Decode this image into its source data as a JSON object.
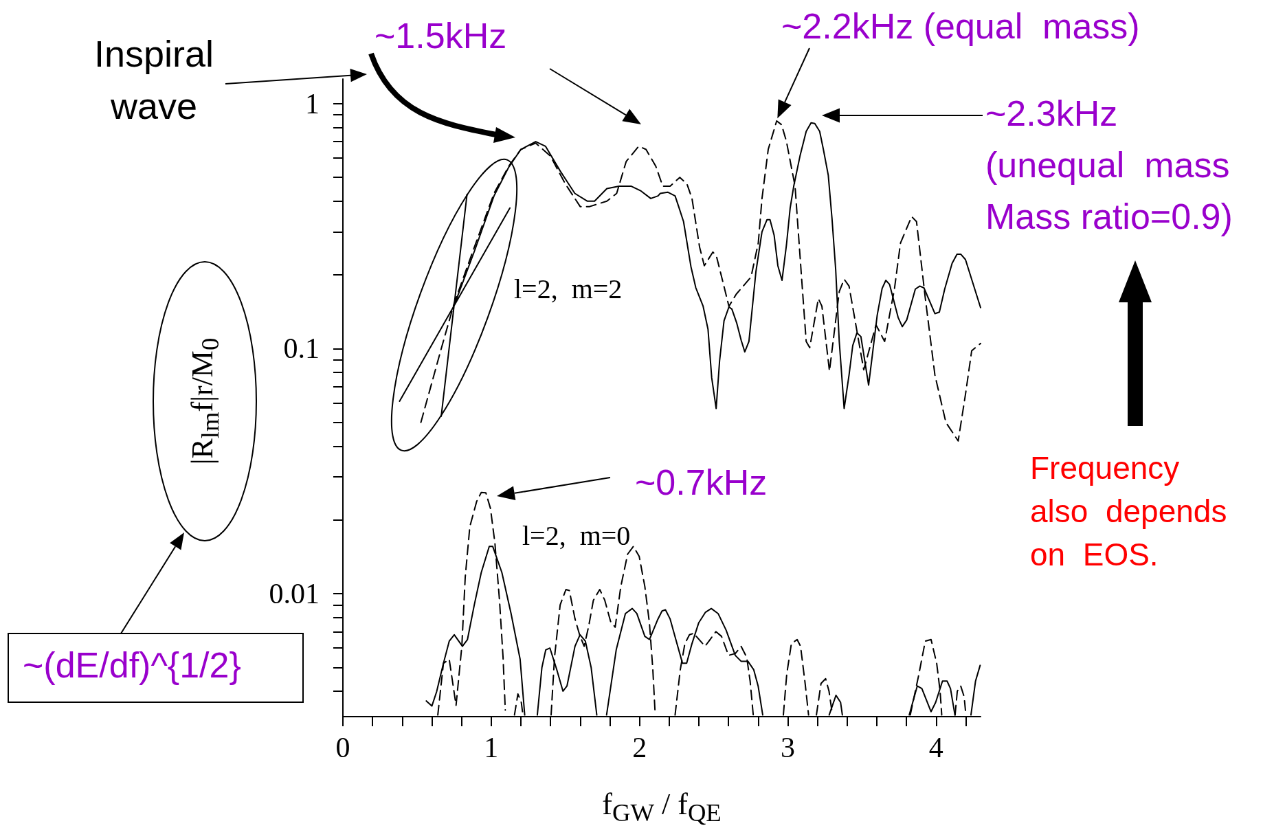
{
  "chart_data": {
    "type": "line",
    "xlabel": "f$_{GW}$ / f$_{QE}$",
    "ylabel": "|R$_{lm}$f|r/M$_{0}$",
    "xlim": [
      0,
      4.3
    ],
    "ylim": [
      0.00315,
      1.26
    ],
    "log": "y",
    "grid": false,
    "marker": "none",
    "xticks": [
      0,
      {
        "value": 0.2,
        "label": null
      },
      {
        "value": 0.4,
        "label": null
      },
      {
        "value": 0.6,
        "label": null
      },
      {
        "value": 0.8,
        "label": null
      },
      1,
      {
        "value": 1.2,
        "label": null
      },
      {
        "value": 1.4,
        "label": null
      },
      {
        "value": 1.6,
        "label": null
      },
      {
        "value": 1.8,
        "label": null
      },
      2,
      {
        "value": 2.2,
        "label": null
      },
      {
        "value": 2.4,
        "label": null
      },
      {
        "value": 2.6,
        "label": null
      },
      {
        "value": 2.8,
        "label": null
      },
      3,
      {
        "value": 3.2,
        "label": null
      },
      {
        "value": 3.4,
        "label": null
      },
      {
        "value": 3.6,
        "label": null
      },
      {
        "value": 3.8,
        "label": null
      },
      4,
      {
        "value": 4.2,
        "label": null
      }
    ],
    "yticks": [
      {
        "value": 0.004,
        "label": null
      },
      {
        "value": 0.005,
        "label": null
      },
      {
        "value": 0.006,
        "label": null
      },
      {
        "value": 0.007,
        "label": null
      },
      {
        "value": 0.008,
        "label": null
      },
      {
        "value": 0.009,
        "label": null
      },
      0.01,
      {
        "value": 0.02,
        "label": null
      },
      {
        "value": 0.03,
        "label": null
      },
      {
        "value": 0.04,
        "label": null
      },
      {
        "value": 0.05,
        "label": null
      },
      {
        "value": 0.06,
        "label": null
      },
      {
        "value": 0.07,
        "label": null
      },
      {
        "value": 0.08,
        "label": null
      },
      {
        "value": 0.09,
        "label": null
      },
      0.1,
      {
        "value": 0.2,
        "label": null
      },
      {
        "value": 0.3,
        "label": null
      },
      {
        "value": 0.4,
        "label": null
      },
      {
        "value": 0.5,
        "label": null
      },
      {
        "value": 0.6,
        "label": null
      },
      {
        "value": 0.7,
        "label": null
      },
      {
        "value": 0.8,
        "label": null
      },
      {
        "value": 0.9,
        "label": null
      },
      1
    ],
    "series": [
      {
        "color": "#000000",
        "line_style": "solid",
        "x": [
          0.382,
          1.126,
          1.0,
          0.837,
          0.663,
          0.7,
          0.75,
          0.887,
          1.019,
          1.118,
          1.2,
          1.3,
          1.366,
          1.466,
          1.564,
          1.647,
          1.697,
          1.78,
          1.862,
          1.945,
          2.01,
          2.076,
          2.125,
          2.14,
          2.19,
          2.24,
          2.264,
          2.297,
          2.347,
          2.38,
          2.429,
          2.462,
          2.487,
          2.517,
          2.54,
          2.57,
          2.603,
          2.623,
          2.656,
          2.686,
          2.71,
          2.738,
          2.785,
          2.826,
          2.86,
          2.88,
          2.908,
          2.933,
          2.961,
          2.991,
          3.016,
          3.04,
          3.082,
          3.124,
          3.157,
          3.182,
          3.215,
          3.24,
          3.273,
          3.298,
          3.323,
          3.347,
          3.38,
          3.413,
          3.438,
          3.466,
          3.493,
          3.545,
          3.57,
          3.603,
          3.636,
          3.661,
          3.686,
          3.744,
          3.772,
          3.802,
          3.86,
          3.89,
          3.918,
          3.992,
          4.022,
          4.058,
          4.108,
          4.141,
          4.166,
          4.198,
          4.3
        ],
        "values": [
          0.061,
          0.375,
          null,
          0.426,
          0.053,
          null,
          0.15,
          0.25,
          0.42,
          0.55,
          0.65,
          0.7,
          0.67,
          0.53,
          0.43,
          0.4,
          0.4,
          0.45,
          0.46,
          0.46,
          0.44,
          0.41,
          0.42,
          0.43,
          0.435,
          0.42,
          0.38,
          0.33,
          0.216,
          0.177,
          0.149,
          0.12,
          0.076,
          0.057,
          0.089,
          0.13,
          0.148,
          0.145,
          0.127,
          0.108,
          0.097,
          0.107,
          0.206,
          0.3,
          0.336,
          0.336,
          0.29,
          0.218,
          0.19,
          0.265,
          0.375,
          0.46,
          0.61,
          0.77,
          0.835,
          0.83,
          0.77,
          0.65,
          0.51,
          0.34,
          0.21,
          0.107,
          0.057,
          0.078,
          0.103,
          0.116,
          0.112,
          0.071,
          0.094,
          0.137,
          0.176,
          0.19,
          0.183,
          0.134,
          0.123,
          0.131,
          0.175,
          0.18,
          0.177,
          0.139,
          0.141,
          0.175,
          0.223,
          0.243,
          0.243,
          0.231,
          0.147
        ]
      },
      {
        "color": "#000000",
        "line_style": "dashed",
        "x": [
          0.526,
          0.655,
          0.75,
          0.887,
          1.019,
          1.118,
          1.2,
          1.3,
          1.4,
          1.5,
          1.6,
          1.664,
          1.78,
          1.846,
          1.91,
          1.995,
          2.044,
          2.11,
          2.157,
          2.206,
          2.272,
          2.32,
          2.354,
          2.405,
          2.437,
          2.495,
          2.52,
          2.603,
          2.653,
          2.752,
          2.801,
          2.826,
          2.868,
          2.925,
          2.958,
          2.991,
          3.049,
          3.09,
          3.124,
          3.148,
          3.206,
          3.23,
          3.281,
          3.347,
          3.38,
          3.413,
          3.512,
          3.595,
          3.653,
          3.719,
          3.76,
          3.835,
          3.868,
          3.926,
          3.992,
          4.066,
          4.149,
          4.198,
          4.24,
          4.3
        ],
        "values": [
          0.05,
          0.096,
          0.153,
          0.26,
          0.43,
          0.555,
          0.65,
          0.69,
          0.61,
          0.47,
          0.38,
          0.38,
          0.4,
          0.43,
          0.58,
          0.67,
          0.65,
          0.555,
          0.46,
          0.46,
          0.5,
          0.47,
          0.41,
          0.26,
          0.218,
          0.248,
          0.237,
          0.149,
          0.167,
          0.196,
          0.27,
          0.41,
          0.65,
          0.85,
          0.82,
          0.7,
          0.46,
          0.206,
          0.107,
          0.101,
          0.16,
          0.149,
          0.081,
          0.171,
          0.192,
          0.18,
          0.082,
          0.125,
          0.107,
          0.175,
          0.27,
          0.346,
          0.33,
          0.163,
          0.078,
          0.05,
          0.042,
          0.065,
          0.098,
          0.105
        ]
      },
      {
        "color": "#000000",
        "line_style": "solid",
        "x": [
          0.5625,
          0.6,
          0.632,
          0.678,
          0.717,
          0.751,
          0.806,
          0.84,
          0.886,
          0.933,
          0.987,
          1.01,
          1.072,
          1.134,
          1.195,
          1.226,
          1.27,
          1.311,
          1.342,
          1.368,
          1.396,
          1.442,
          1.484,
          1.511,
          1.565,
          1.599,
          1.635,
          1.674,
          1.712,
          1.745,
          1.778,
          1.843,
          1.905,
          1.951,
          1.982,
          2.036,
          2.067,
          2.121,
          2.152,
          2.175,
          2.206,
          2.245,
          2.29,
          2.318,
          2.352,
          2.399,
          2.445,
          2.484,
          2.53,
          2.584,
          2.646,
          2.685,
          2.731,
          2.77,
          2.8,
          2.831,
          3.05,
          3.279,
          3.325,
          3.356,
          3.368,
          3.6,
          3.819,
          3.873,
          3.904,
          3.966,
          3.997,
          4.043,
          4.074,
          4.097,
          4.127,
          4.18,
          4.235,
          4.266,
          4.297
        ],
        "values": [
          0.00365,
          0.00348,
          0.00398,
          0.0052,
          0.0064,
          0.0068,
          0.0061,
          0.0065,
          0.009,
          0.0122,
          0.0156,
          0.0156,
          0.0122,
          0.0083,
          0.0054,
          0.0032,
          null,
          0.0032,
          0.005,
          0.0059,
          0.006,
          0.0049,
          0.004,
          0.0042,
          0.0061,
          0.0068,
          0.0064,
          0.005,
          0.0032,
          null,
          0.0032,
          0.0059,
          0.0083,
          0.0087,
          0.0083,
          0.0067,
          0.0065,
          0.0078,
          0.0085,
          0.0086,
          0.0079,
          0.0065,
          0.0052,
          0.0052,
          0.0062,
          0.0076,
          0.0084,
          0.0087,
          0.0083,
          0.0071,
          0.0056,
          0.0053,
          0.0053,
          0.0049,
          0.0042,
          0.0032,
          null,
          0.0032,
          0.00385,
          0.0036,
          0.0032,
          null,
          0.0032,
          0.0042,
          0.0041,
          0.0033,
          0.0036,
          0.0044,
          0.0044,
          0.0041,
          0.0032,
          null,
          0.0032,
          0.0044,
          0.0051
        ]
      },
      {
        "color": "#000000",
        "line_style": "dashed",
        "x": [
          0.64,
          0.678,
          0.717,
          0.763,
          0.802,
          0.825,
          0.856,
          0.902,
          0.933,
          0.964,
          0.995,
          1.025,
          1.056,
          1.08,
          1.095,
          1.13,
          1.157,
          1.18,
          1.203,
          1.214,
          1.3,
          1.404,
          1.427,
          1.465,
          1.504,
          1.527,
          1.565,
          1.596,
          1.627,
          1.658,
          1.689,
          1.732,
          1.766,
          1.805,
          1.836,
          1.874,
          1.92,
          1.959,
          1.998,
          2.036,
          2.067,
          2.09,
          2.106,
          2.17,
          2.24,
          2.275,
          2.306,
          2.337,
          2.368,
          2.383,
          2.442,
          2.476,
          2.515,
          2.553,
          2.6,
          2.646,
          2.685,
          2.723,
          2.746,
          2.767,
          2.87,
          2.97,
          2.993,
          3.024,
          3.063,
          3.086,
          3.117,
          3.14,
          3.17,
          3.193,
          3.224,
          3.255,
          3.278,
          3.301,
          3.6,
          3.826,
          3.881,
          3.927,
          3.966,
          4.004,
          4.027,
          4.038,
          4.09,
          4.128,
          4.143,
          4.166,
          4.189,
          4.201
        ],
        "values": [
          0.0032,
          0.0052,
          0.0054,
          0.0035,
          0.0061,
          0.0117,
          0.0188,
          0.0238,
          0.0259,
          0.0258,
          0.0223,
          0.0161,
          0.0094,
          0.0055,
          0.00335,
          null,
          0.0032,
          0.0039,
          0.0036,
          0.0032,
          null,
          0.0032,
          0.0055,
          0.009,
          0.0104,
          0.0103,
          0.0079,
          0.0068,
          0.0061,
          0.0074,
          0.0094,
          0.0104,
          0.0094,
          0.0077,
          0.0073,
          0.0107,
          0.0145,
          0.0156,
          0.0142,
          0.0107,
          0.0076,
          0.0049,
          0.0032,
          null,
          0.0032,
          0.0049,
          0.00625,
          0.0068,
          0.0069,
          0.0067,
          0.0061,
          0.0065,
          0.007,
          0.0067,
          0.0056,
          0.0057,
          0.0061,
          0.0055,
          0.0044,
          0.0032,
          null,
          0.0032,
          0.0047,
          0.00625,
          0.0065,
          0.0061,
          0.0043,
          0.0032,
          null,
          0.0032,
          0.0043,
          0.0045,
          0.004,
          0.0032,
          null,
          0.0032,
          0.0046,
          0.0064,
          0.0065,
          0.0052,
          0.004,
          0.0032,
          null,
          0.0032,
          0.004,
          0.0042,
          0.0038,
          0.0032
        ]
      }
    ],
    "annotations": [
      "~1.5kHz",
      {
        "text": "~2.2kHz (equal  mass)",
        "x": 2.93,
        "y": 0.87
      },
      "~2.3kHz\n(unequal  mass\nMass ratio=0.9)",
      "~0.7kHz",
      "Inspiral\nwave",
      "l=2,  m=2",
      "l=2,  m=0",
      "~(dE/df)^{1/2}",
      "Frequency\nalso  depends\non  EOS."
    ]
  }
}
